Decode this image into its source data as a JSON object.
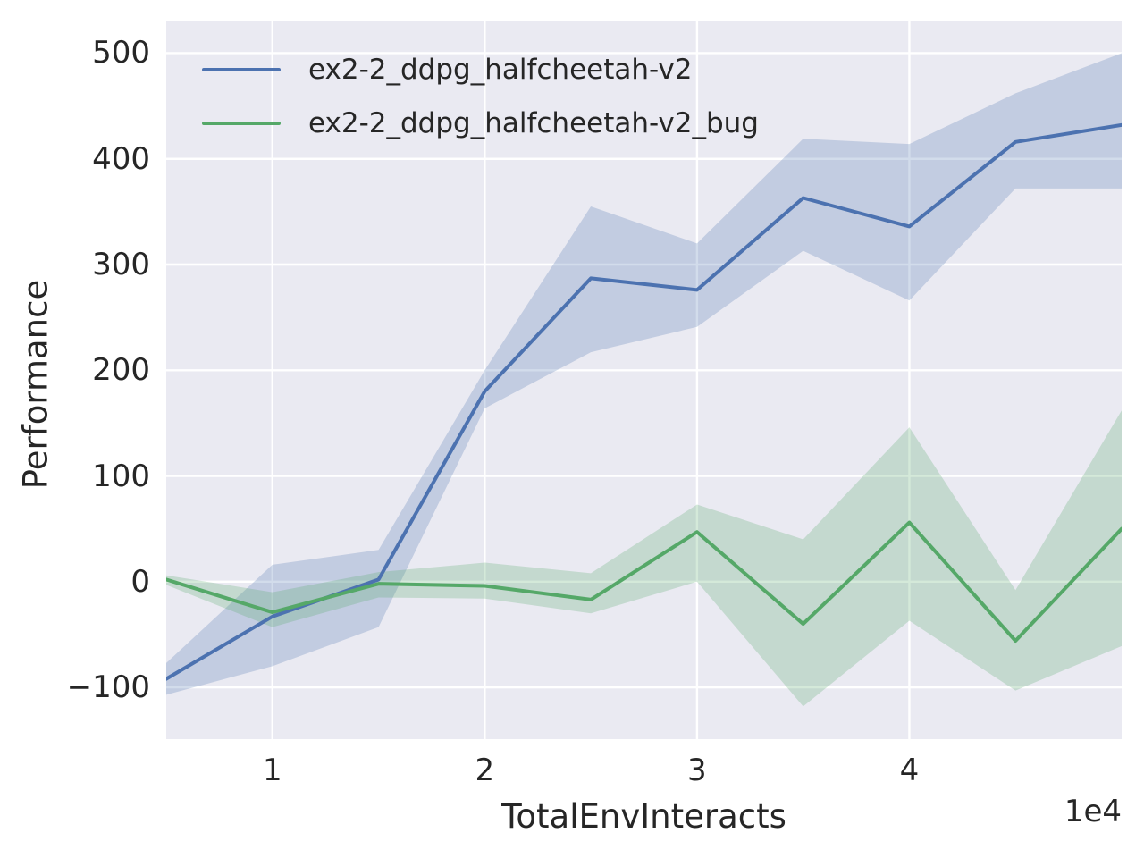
{
  "chart_data": {
    "type": "line",
    "title": "",
    "xlabel": "TotalEnvInteracts",
    "ylabel": "Performance",
    "x_multiplier_label": "1e4",
    "grid": true,
    "legend_position": "upper left",
    "background_color": "#eaeaf2",
    "gridline_color": "#ffffff",
    "text_color": "#262626",
    "xlim": [
      0.5,
      5.0
    ],
    "ylim": [
      -149,
      530
    ],
    "x_units": "1e4",
    "x": [
      0.5,
      1.0,
      1.5,
      2.0,
      2.5,
      3.0,
      3.5,
      4.0,
      4.5,
      5.0
    ],
    "series": [
      {
        "name": "ex2-2_ddpg_halfcheetah-v2",
        "color": "#4c72b0",
        "values": [
          -92,
          -33,
          2,
          180,
          287,
          276,
          363,
          336,
          416,
          432
        ],
        "band_low": [
          -107,
          -80,
          -43,
          164,
          217,
          241,
          313,
          266,
          372,
          372
        ],
        "band_high": [
          -77,
          16,
          30,
          200,
          355,
          320,
          419,
          414,
          462,
          500
        ]
      },
      {
        "name": "ex2-2_ddpg_halfcheetah-v2_bug",
        "color": "#55a868",
        "values": [
          2,
          -29,
          -2,
          -4,
          -17,
          47,
          -40,
          56,
          -56,
          50
        ],
        "band_low": [
          -3,
          -43,
          -15,
          -16,
          -30,
          0,
          -118,
          -37,
          -103,
          -61
        ],
        "band_high": [
          6,
          -10,
          9,
          18,
          8,
          73,
          40,
          146,
          -8,
          162
        ]
      }
    ],
    "xticks": [
      {
        "v": 1,
        "label": "1"
      },
      {
        "v": 2,
        "label": "2"
      },
      {
        "v": 3,
        "label": "3"
      },
      {
        "v": 4,
        "label": "4"
      }
    ],
    "yticks": [
      {
        "v": 500,
        "label": "500"
      },
      {
        "v": 400,
        "label": "400"
      },
      {
        "v": 300,
        "label": "300"
      },
      {
        "v": 200,
        "label": "200"
      },
      {
        "v": 100,
        "label": "100"
      },
      {
        "v": 0,
        "label": "0"
      },
      {
        "v": -100,
        "label": "−100"
      }
    ]
  }
}
